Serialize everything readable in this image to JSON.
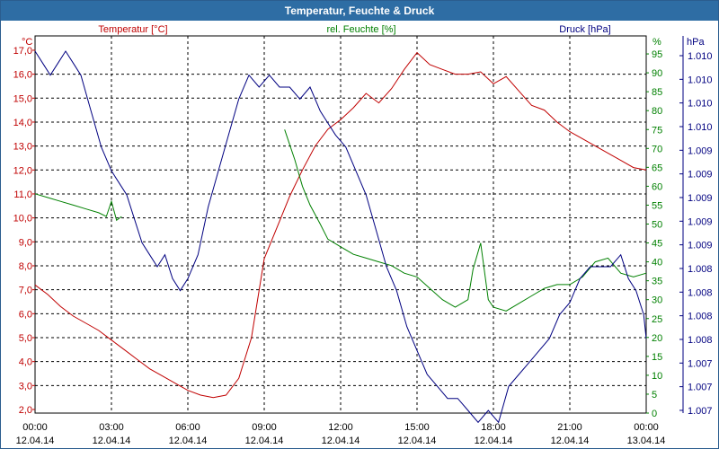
{
  "window": {
    "title": "Temperatur, Feuchte & Druck"
  },
  "chart_data": {
    "type": "line",
    "title": "Temperatur, Feuchte & Druck",
    "x_ticks": [
      {
        "time": "00:00",
        "date": "12.04.14"
      },
      {
        "time": "03:00",
        "date": "12.04.14"
      },
      {
        "time": "06:00",
        "date": "12.04.14"
      },
      {
        "time": "09:00",
        "date": "12.04.14"
      },
      {
        "time": "12:00",
        "date": "12.04.14"
      },
      {
        "time": "15:00",
        "date": "12.04.14"
      },
      {
        "time": "18:00",
        "date": "12.04.14"
      },
      {
        "time": "21:00",
        "date": "12.04.14"
      },
      {
        "time": "00:00",
        "date": "13.04.14"
      }
    ],
    "x_range_hours": [
      0,
      24
    ],
    "grid": true,
    "axes": {
      "temperature": {
        "label": "Temperatur [°C]",
        "unit": "°C",
        "color": "#c00000",
        "range": [
          2.0,
          17.0
        ],
        "ticks": [
          "17,0",
          "16,0",
          "15,0",
          "14,0",
          "13,0",
          "12,0",
          "11,0",
          "10,0",
          "9,0",
          "8,0",
          "7,0",
          "6,0",
          "5,0",
          "4,0",
          "3,0",
          "2,0"
        ]
      },
      "humidity": {
        "label": "rel. Feuchte [%]",
        "unit": "%",
        "color": "#008000",
        "range": [
          0,
          100
        ],
        "ticks": [
          "95",
          "90",
          "85",
          "80",
          "75",
          "70",
          "65",
          "60",
          "55",
          "50",
          "45",
          "40",
          "35",
          "30",
          "25",
          "20",
          "15",
          "10",
          "5",
          "0"
        ]
      },
      "pressure": {
        "label": "Druck [hPa]",
        "unit": "hPa",
        "color": "#000080",
        "ticks": [
          "1.010",
          "1.010",
          "1.010",
          "1.010",
          "1.009",
          "1.009",
          "1.009",
          "1.009",
          "1.009",
          "1.008",
          "1.008",
          "1.008",
          "1.008",
          "1.007",
          "1.007",
          "1.007"
        ]
      }
    },
    "series": [
      {
        "name": "Temperatur",
        "color": "#c00000",
        "x": [
          0,
          0.5,
          1,
          1.5,
          2,
          2.5,
          3,
          3.5,
          4,
          4.5,
          5,
          5.5,
          6,
          6.5,
          7,
          7.5,
          8,
          8.5,
          9,
          9.5,
          10,
          10.5,
          11,
          11.5,
          12,
          12.5,
          13,
          13.5,
          14,
          14.5,
          15,
          15.5,
          16,
          16.5,
          17,
          17.5,
          18,
          18.5,
          19,
          19.5,
          20,
          20.5,
          21,
          21.5,
          22,
          22.5,
          23,
          23.5,
          24
        ],
        "values": [
          7.2,
          6.8,
          6.3,
          5.9,
          5.6,
          5.3,
          4.9,
          4.5,
          4.1,
          3.7,
          3.4,
          3.1,
          2.8,
          2.6,
          2.5,
          2.6,
          3.3,
          5.0,
          8.3,
          9.6,
          10.9,
          12.0,
          13.0,
          13.7,
          14.1,
          14.6,
          15.2,
          14.8,
          15.4,
          16.2,
          16.9,
          16.4,
          16.2,
          16.0,
          16.0,
          16.1,
          15.6,
          15.9,
          15.3,
          14.7,
          14.5,
          14.0,
          13.6,
          13.3,
          13.0,
          12.7,
          12.4,
          12.1,
          12.0
        ]
      },
      {
        "name": "rel. Feuchte",
        "color": "#008000",
        "x": [
          0,
          0.5,
          1,
          1.5,
          2,
          2.5,
          2.8,
          3,
          3.2,
          3.4,
          9.8,
          10.2,
          10.5,
          10.8,
          11.2,
          11.5,
          12,
          12.5,
          13,
          13.5,
          14,
          14.5,
          15,
          15.5,
          16,
          16.5,
          17,
          17.2,
          17.5,
          17.8,
          18,
          18.5,
          19,
          19.5,
          20,
          20.5,
          21,
          21.5,
          22,
          22.5,
          23,
          23.5,
          24
        ],
        "values": [
          58,
          57,
          56,
          55,
          54,
          53,
          52,
          56,
          51,
          52,
          75,
          67,
          60,
          55,
          50,
          46,
          44,
          42,
          41,
          40,
          39,
          37,
          36,
          33,
          30,
          28,
          30,
          38,
          45,
          30,
          28,
          27,
          29,
          31,
          33,
          34,
          34,
          36,
          40,
          41,
          37,
          36,
          37
        ]
      },
      {
        "name": "Druck",
        "color": "#000080",
        "x": [
          0,
          0.3,
          0.6,
          0.9,
          1.2,
          1.5,
          1.8,
          2.2,
          2.6,
          3,
          3.3,
          3.6,
          3.9,
          4.2,
          4.5,
          4.8,
          5.1,
          5.4,
          5.7,
          6,
          6.4,
          6.8,
          7.2,
          7.6,
          8,
          8.4,
          8.8,
          9.2,
          9.6,
          10,
          10.4,
          10.8,
          11.2,
          11.5,
          11.8,
          12.2,
          12.6,
          13,
          13.4,
          13.8,
          14.2,
          14.6,
          15,
          15.4,
          15.8,
          16.2,
          16.6,
          17,
          17.4,
          17.8,
          18.2,
          18.6,
          19,
          19.4,
          19.8,
          20.2,
          20.6,
          21,
          21.4,
          21.8,
          22.2,
          22.6,
          23,
          23.3,
          23.6,
          23.9,
          24
        ],
        "values": [
          1.01,
          1.0099,
          1.0098,
          1.0099,
          1.01,
          1.0099,
          1.0098,
          1.0095,
          1.0092,
          1.009,
          1.0089,
          1.0088,
          1.0086,
          1.0084,
          1.0083,
          1.0082,
          1.0083,
          1.0081,
          1.008,
          1.0081,
          1.0083,
          1.0087,
          1.009,
          1.0093,
          1.0096,
          1.0098,
          1.0097,
          1.0098,
          1.0097,
          1.0097,
          1.0096,
          1.0097,
          1.0095,
          1.0094,
          1.0093,
          1.0092,
          1.009,
          1.0088,
          1.0085,
          1.0082,
          1.008,
          1.0077,
          1.0075,
          1.0073,
          1.0072,
          1.0071,
          1.0071,
          1.007,
          1.0069,
          1.007,
          1.0069,
          1.0072,
          1.0073,
          1.0074,
          1.0075,
          1.0076,
          1.0078,
          1.0079,
          1.0081,
          1.0082,
          1.0082,
          1.0082,
          1.0083,
          1.0081,
          1.008,
          1.0078,
          1.0076
        ]
      }
    ]
  }
}
